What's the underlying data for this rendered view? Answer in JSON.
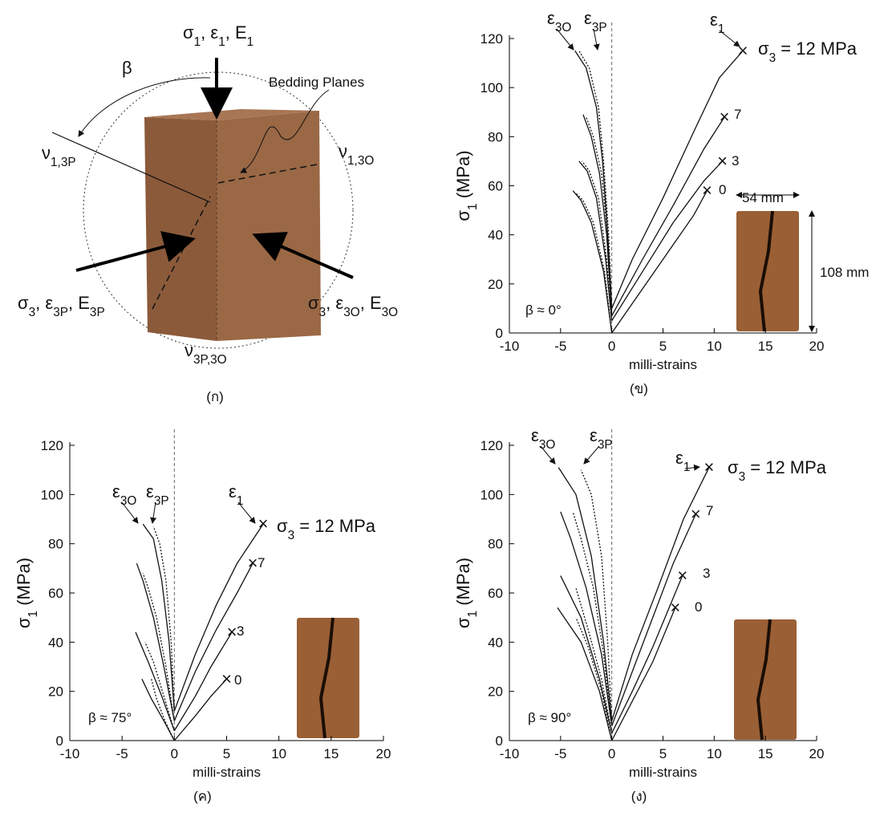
{
  "diagram": {
    "labels": [
      [
        "σ",
        {
          "sub": "1"
        },
        ", ε",
        {
          "sub": "1"
        },
        ", E",
        {
          "sub": "1"
        }
      ],
      "β",
      "Bedding Planes",
      [
        "ν",
        {
          "sub": "1,3P"
        }
      ],
      [
        "ν",
        {
          "sub": "1,3O"
        }
      ],
      [
        "σ",
        {
          "sub": "3"
        },
        ", ε",
        {
          "sub": "3P"
        },
        ", E",
        {
          "sub": "3P"
        }
      ],
      [
        "σ",
        {
          "sub": "3"
        },
        ", ε",
        {
          "sub": "3O"
        },
        ", E",
        {
          "sub": "3O"
        }
      ],
      [
        "ν",
        {
          "sub": "3P,3O"
        }
      ]
    ],
    "caption": "(ก)"
  },
  "chart_data": [
    {
      "type": "line",
      "caption": "(ข)",
      "xlabel": "milli-strains",
      "ylabel": [
        "σ",
        {
          "sub": "1"
        },
        " (MPa)"
      ],
      "xlim": [
        -10,
        20
      ],
      "xticks": [
        -10,
        -5,
        0,
        5,
        10,
        15,
        20
      ],
      "ylim": [
        0,
        120
      ],
      "yticks": [
        0,
        20,
        40,
        60,
        80,
        100,
        120
      ],
      "annotations": [
        [
          "ε",
          {
            "sub": "3O"
          }
        ],
        [
          "ε",
          {
            "sub": "3P"
          }
        ],
        [
          "ε",
          {
            "sub": "1"
          }
        ],
        [
          "σ",
          {
            "sub": "3"
          },
          " = 12 MPa"
        ],
        "7",
        "3",
        "0",
        "β ≈ 0°",
        "54 mm",
        "108 mm"
      ],
      "series": [
        {
          "style": "solid",
          "x": [
            0,
            2,
            5,
            8,
            10.5,
            12.8
          ],
          "values": [
            10,
            30,
            55,
            82,
            104,
            115
          ]
        },
        {
          "style": "solid",
          "x": [
            0,
            -0.4,
            -0.9,
            -1.5,
            -2.5,
            -3.6
          ],
          "values": [
            10,
            40,
            70,
            92,
            108,
            115
          ]
        },
        {
          "style": "dotted",
          "x": [
            0,
            -0.3,
            -0.8,
            -1.3,
            -2.2,
            -3.2
          ],
          "values": [
            10,
            40,
            70,
            92,
            108,
            115
          ]
        },
        {
          "style": "solid",
          "x": [
            0,
            3,
            6,
            9,
            11
          ],
          "values": [
            7,
            30,
            52,
            75,
            88
          ]
        },
        {
          "style": "solid",
          "x": [
            0,
            -0.5,
            -1.2,
            -2,
            -2.8
          ],
          "values": [
            7,
            40,
            65,
            80,
            89
          ]
        },
        {
          "style": "dotted",
          "x": [
            0,
            -0.4,
            -1,
            -1.8,
            -2.5
          ],
          "values": [
            7,
            40,
            65,
            80,
            88
          ]
        },
        {
          "style": "solid",
          "x": [
            0,
            3,
            6,
            9,
            10.8
          ],
          "values": [
            5,
            25,
            45,
            62,
            70
          ]
        },
        {
          "style": "solid",
          "x": [
            0,
            -0.6,
            -1.5,
            -2.4,
            -3.2
          ],
          "values": [
            5,
            30,
            55,
            66,
            70
          ]
        },
        {
          "style": "dotted",
          "x": [
            0,
            -0.5,
            -1.3,
            -2.2,
            -2.9
          ],
          "values": [
            5,
            30,
            55,
            66,
            70
          ]
        },
        {
          "style": "solid",
          "x": [
            0,
            3,
            6,
            8,
            9.3
          ],
          "values": [
            0,
            18,
            36,
            48,
            58
          ]
        },
        {
          "style": "solid",
          "x": [
            0,
            -0.8,
            -2,
            -3,
            -3.8
          ],
          "values": [
            0,
            25,
            45,
            54,
            58
          ]
        },
        {
          "style": "dotted",
          "x": [
            0,
            -0.7,
            -1.8,
            -2.8,
            -3.5
          ],
          "values": [
            0,
            25,
            45,
            54,
            57
          ]
        }
      ]
    },
    {
      "type": "line",
      "caption": "(ค)",
      "xlabel": "milli-strains",
      "ylabel": [
        "σ",
        {
          "sub": "1"
        },
        " (MPa)"
      ],
      "xlim": [
        -10,
        20
      ],
      "xticks": [
        -10,
        -5,
        0,
        5,
        10,
        15,
        20
      ],
      "ylim": [
        0,
        120
      ],
      "yticks": [
        0,
        20,
        40,
        60,
        80,
        100,
        120
      ],
      "annotations": [
        [
          "ε",
          {
            "sub": "3O"
          }
        ],
        [
          "ε",
          {
            "sub": "3P"
          }
        ],
        [
          "ε",
          {
            "sub": "1"
          }
        ],
        [
          "σ",
          {
            "sub": "3"
          },
          " = 12 MPa"
        ],
        "7",
        "3",
        "0",
        "β ≈ 75°"
      ],
      "series": [
        {
          "style": "solid",
          "x": [
            0,
            2,
            4,
            6,
            8.5
          ],
          "values": [
            12,
            35,
            55,
            72,
            88
          ]
        },
        {
          "style": "solid",
          "x": [
            0,
            -0.5,
            -1.2,
            -2,
            -3
          ],
          "values": [
            12,
            40,
            65,
            82,
            88
          ]
        },
        {
          "style": "dotted",
          "x": [
            0,
            -0.3,
            -0.8,
            -1.4,
            -2
          ],
          "values": [
            12,
            40,
            65,
            80,
            87
          ]
        },
        {
          "style": "solid",
          "x": [
            0,
            2,
            4,
            6,
            7.5
          ],
          "values": [
            8,
            28,
            45,
            60,
            72
          ]
        },
        {
          "style": "solid",
          "x": [
            0,
            -1,
            -2,
            -3,
            -3.6
          ],
          "values": [
            8,
            30,
            50,
            65,
            72
          ]
        },
        {
          "style": "dotted",
          "x": [
            0,
            -0.8,
            -1.7,
            -2.5,
            -3
          ],
          "values": [
            8,
            30,
            50,
            62,
            68
          ]
        },
        {
          "style": "solid",
          "x": [
            0,
            2,
            3.5,
            5.5
          ],
          "values": [
            4,
            18,
            30,
            44
          ]
        },
        {
          "style": "solid",
          "x": [
            0,
            -1.2,
            -2.5,
            -3.7
          ],
          "values": [
            4,
            18,
            32,
            44
          ]
        },
        {
          "style": "dotted",
          "x": [
            0,
            -1,
            -2,
            -2.8
          ],
          "values": [
            4,
            18,
            32,
            40
          ]
        },
        {
          "style": "solid",
          "x": [
            0,
            2,
            3.5,
            5
          ],
          "values": [
            0,
            10,
            18,
            25
          ]
        },
        {
          "style": "solid",
          "x": [
            0,
            -1,
            -2.2,
            -3.1
          ],
          "values": [
            0,
            8,
            17,
            25
          ]
        },
        {
          "style": "dotted",
          "x": [
            0,
            -0.9,
            -1.7,
            -2.2
          ],
          "values": [
            0,
            8,
            17,
            25
          ]
        }
      ]
    },
    {
      "type": "line",
      "caption": "(ง)",
      "xlabel": "milli-strains",
      "ylabel": [
        "σ",
        {
          "sub": "1"
        },
        " (MPa)"
      ],
      "xlim": [
        -10,
        20
      ],
      "xticks": [
        -10,
        -5,
        0,
        5,
        10,
        15,
        20
      ],
      "ylim": [
        0,
        120
      ],
      "yticks": [
        0,
        20,
        40,
        60,
        80,
        100,
        120
      ],
      "annotations": [
        [
          "ε",
          {
            "sub": "3O"
          }
        ],
        [
          "ε",
          {
            "sub": "3P"
          }
        ],
        [
          "ε",
          {
            "sub": "1"
          }
        ],
        [
          "σ",
          {
            "sub": "3"
          },
          " = 12 MPa"
        ],
        "7",
        "3",
        "0",
        "β ≈ 90°"
      ],
      "series": [
        {
          "style": "solid",
          "x": [
            0,
            2,
            4.5,
            7,
            9.5
          ],
          "values": [
            8,
            35,
            62,
            90,
            111
          ]
        },
        {
          "style": "solid",
          "x": [
            0,
            -0.8,
            -2,
            -3.5,
            -5.2
          ],
          "values": [
            8,
            40,
            75,
            100,
            111
          ]
        },
        {
          "style": "dotted",
          "x": [
            0,
            -0.4,
            -1,
            -2,
            -3
          ],
          "values": [
            8,
            40,
            75,
            100,
            110
          ]
        },
        {
          "style": "solid",
          "x": [
            0,
            2,
            4,
            6,
            8.2
          ],
          "values": [
            6,
            28,
            50,
            72,
            92
          ]
        },
        {
          "style": "solid",
          "x": [
            0,
            -1,
            -2.5,
            -4,
            -5
          ],
          "values": [
            6,
            35,
            62,
            82,
            93
          ]
        },
        {
          "style": "dotted",
          "x": [
            0,
            -0.8,
            -1.8,
            -3,
            -3.8
          ],
          "values": [
            6,
            35,
            62,
            82,
            93
          ]
        },
        {
          "style": "solid",
          "x": [
            0,
            2,
            4,
            6.9
          ],
          "values": [
            3,
            20,
            38,
            67
          ]
        },
        {
          "style": "solid",
          "x": [
            0,
            -1.2,
            -3,
            -5
          ],
          "values": [
            3,
            25,
            50,
            67
          ]
        },
        {
          "style": "dotted",
          "x": [
            0,
            -1,
            -2.3,
            -3.5
          ],
          "values": [
            3,
            25,
            45,
            62
          ]
        },
        {
          "style": "solid",
          "x": [
            0,
            2,
            4,
            6.2
          ],
          "values": [
            0,
            16,
            32,
            54
          ]
        },
        {
          "style": "solid",
          "x": [
            0,
            -1.2,
            -3,
            -5.3
          ],
          "values": [
            0,
            20,
            40,
            54
          ]
        },
        {
          "style": "dotted",
          "x": [
            0,
            -1,
            -2.3,
            -3.5
          ],
          "values": [
            0,
            20,
            38,
            50
          ]
        }
      ]
    }
  ]
}
